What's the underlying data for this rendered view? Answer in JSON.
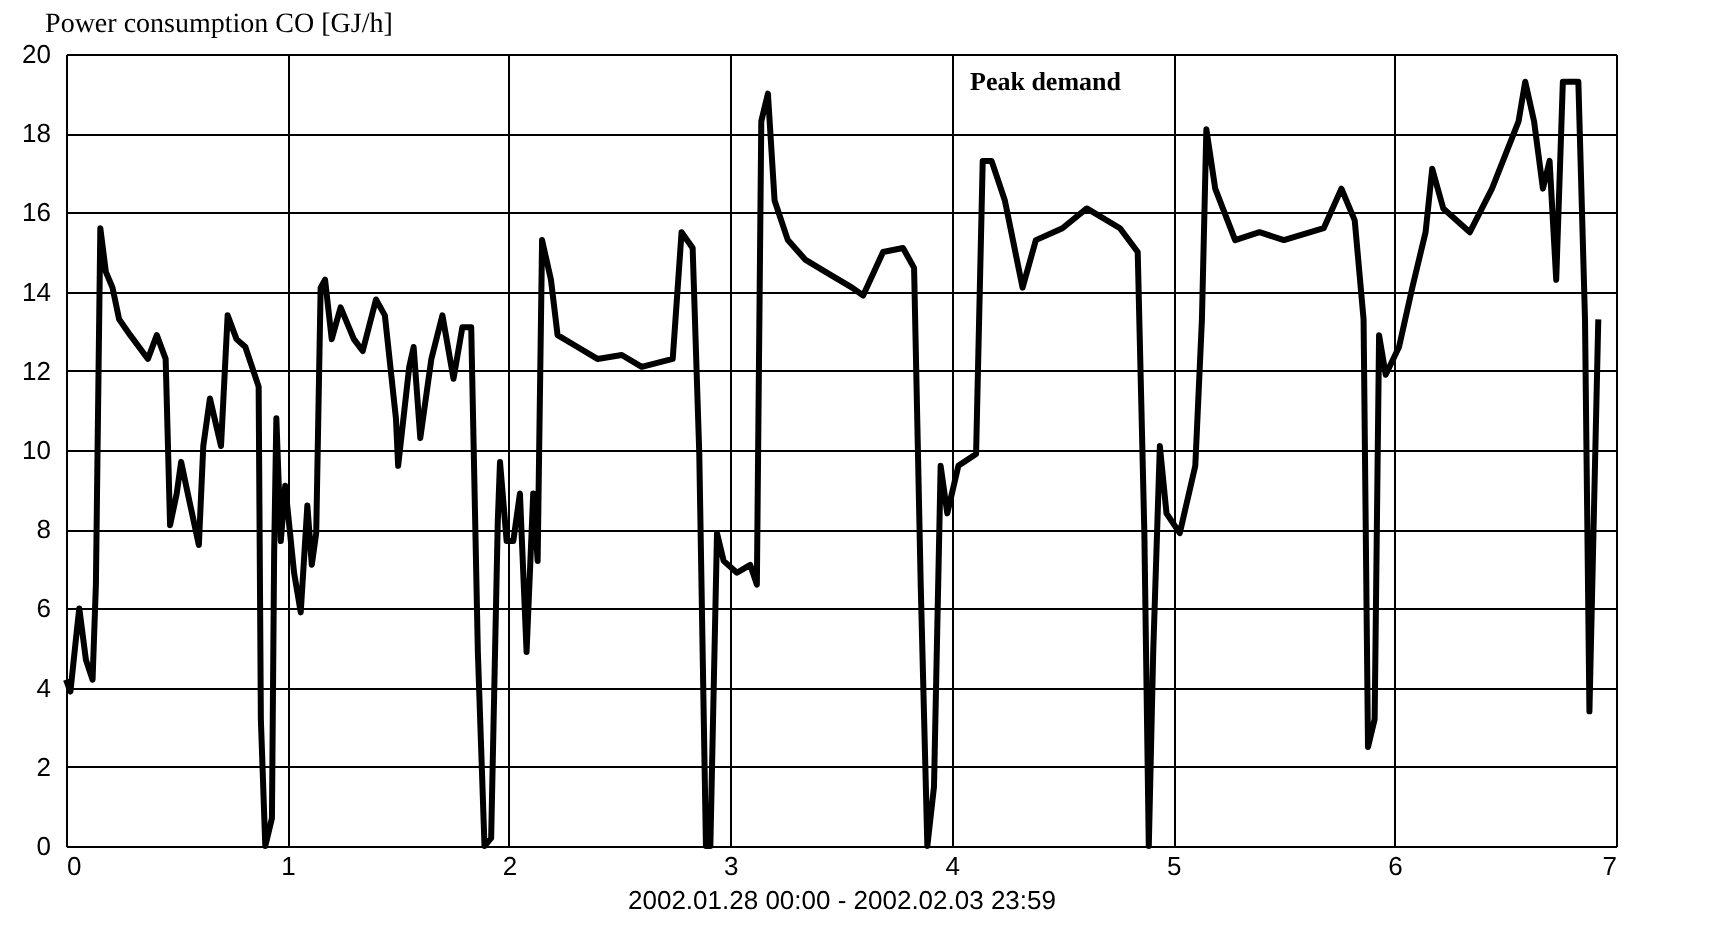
{
  "chart_data": {
    "type": "line",
    "title": "Power consumption CO [GJ/h]",
    "xlabel": "2002.01.28 00:00 - 2002.02.03 23:59",
    "annotations": [
      "Peak demand"
    ],
    "xlim": [
      0,
      7
    ],
    "xticks": [
      0,
      1,
      2,
      3,
      4,
      5,
      6,
      7
    ],
    "ylim": [
      0,
      20
    ],
    "yticks": [
      0,
      2,
      4,
      6,
      8,
      10,
      12,
      14,
      16,
      18,
      20
    ],
    "grid": true,
    "line_style": "solid",
    "marker": "none",
    "series": [
      {
        "color": "#000000",
        "x": [
          0,
          0.02,
          0.05,
          0.06,
          0.09,
          0.12,
          0.135,
          0.155,
          0.18,
          0.21,
          0.24,
          0.29,
          0.37,
          0.41,
          0.45,
          0.47,
          0.5,
          0.52,
          0.55,
          0.6,
          0.62,
          0.65,
          0.7,
          0.73,
          0.77,
          0.81,
          0.87,
          0.88,
          0.9,
          0.93,
          0.94,
          0.95,
          0.97,
          0.99,
          1.03,
          1.06,
          1.09,
          1.11,
          1.13,
          1.15,
          1.17,
          1.2,
          1.24,
          1.3,
          1.34,
          1.4,
          1.44,
          1.49,
          1.5,
          1.55,
          1.57,
          1.6,
          1.65,
          1.7,
          1.75,
          1.79,
          1.83,
          1.86,
          1.89,
          1.92,
          1.95,
          1.96,
          1.99,
          2.02,
          2.05,
          2.08,
          2.11,
          2.13,
          2.15,
          2.19,
          2.22,
          2.31,
          2.4,
          2.51,
          2.6,
          2.74,
          2.78,
          2.83,
          2.86,
          2.89,
          2.91,
          2.94,
          2.97,
          3.03,
          3.09,
          3.12,
          3.14,
          3.17,
          3.2,
          3.26,
          3.34,
          3.43,
          3.55,
          3.6,
          3.69,
          3.78,
          3.83,
          3.86,
          3.89,
          3.92,
          3.95,
          3.98,
          4.03,
          4.11,
          4.14,
          4.18,
          4.24,
          4.32,
          4.38,
          4.5,
          4.61,
          4.76,
          4.84,
          4.87,
          4.89,
          4.91,
          4.94,
          4.97,
          5.03,
          5.1,
          5.13,
          5.15,
          5.19,
          5.28,
          5.39,
          5.5,
          5.68,
          5.76,
          5.82,
          5.86,
          5.88,
          5.91,
          5.93,
          5.96,
          6.02,
          6.08,
          6.14,
          6.17,
          6.22,
          6.34,
          6.44,
          6.56,
          6.59,
          6.63,
          6.67,
          6.7,
          6.73,
          6.76,
          6.83,
          6.86,
          6.88,
          6.92
        ],
        "values": [
          4.2,
          3.9,
          5.5,
          6.0,
          4.7,
          4.2,
          6.6,
          15.6,
          14.5,
          14.1,
          13.3,
          12.9,
          12.3,
          12.9,
          12.3,
          8.1,
          8.9,
          9.7,
          8.9,
          7.6,
          10.1,
          11.3,
          10.1,
          13.4,
          12.8,
          12.6,
          11.6,
          3.2,
          0,
          0.7,
          7.4,
          10.8,
          7.7,
          9.1,
          6.9,
          5.9,
          8.6,
          7.1,
          7.9,
          14.1,
          14.3,
          12.8,
          13.6,
          12.8,
          12.5,
          13.8,
          13.4,
          10.8,
          9.6,
          12.1,
          12.6,
          10.3,
          12.3,
          13.4,
          11.8,
          13.1,
          13.1,
          4.9,
          0,
          0.2,
          8.2,
          9.7,
          7.7,
          7.7,
          8.9,
          4.9,
          8.9,
          7.2,
          15.3,
          14.3,
          12.9,
          12.6,
          12.3,
          12.4,
          12.1,
          12.3,
          15.5,
          15.1,
          9.9,
          0,
          0,
          7.9,
          7.2,
          6.9,
          7.1,
          6.6,
          18.3,
          19.0,
          16.3,
          15.3,
          14.8,
          14.5,
          14.1,
          13.9,
          15.0,
          15.1,
          14.6,
          6.6,
          0,
          1.5,
          9.6,
          8.4,
          9.6,
          9.9,
          17.3,
          17.3,
          16.3,
          14.1,
          15.3,
          15.6,
          16.1,
          15.6,
          15.0,
          7.9,
          0,
          4.9,
          10.1,
          8.4,
          7.9,
          9.6,
          13.3,
          18.1,
          16.6,
          15.3,
          15.5,
          15.3,
          15.6,
          16.6,
          15.8,
          13.3,
          2.5,
          3.2,
          12.9,
          11.9,
          12.6,
          14.1,
          15.5,
          17.1,
          16.1,
          15.5,
          16.6,
          18.3,
          19.3,
          18.3,
          16.6,
          17.3,
          14.3,
          19.3,
          19.3,
          13.3,
          3.4,
          13.3
        ]
      }
    ]
  }
}
